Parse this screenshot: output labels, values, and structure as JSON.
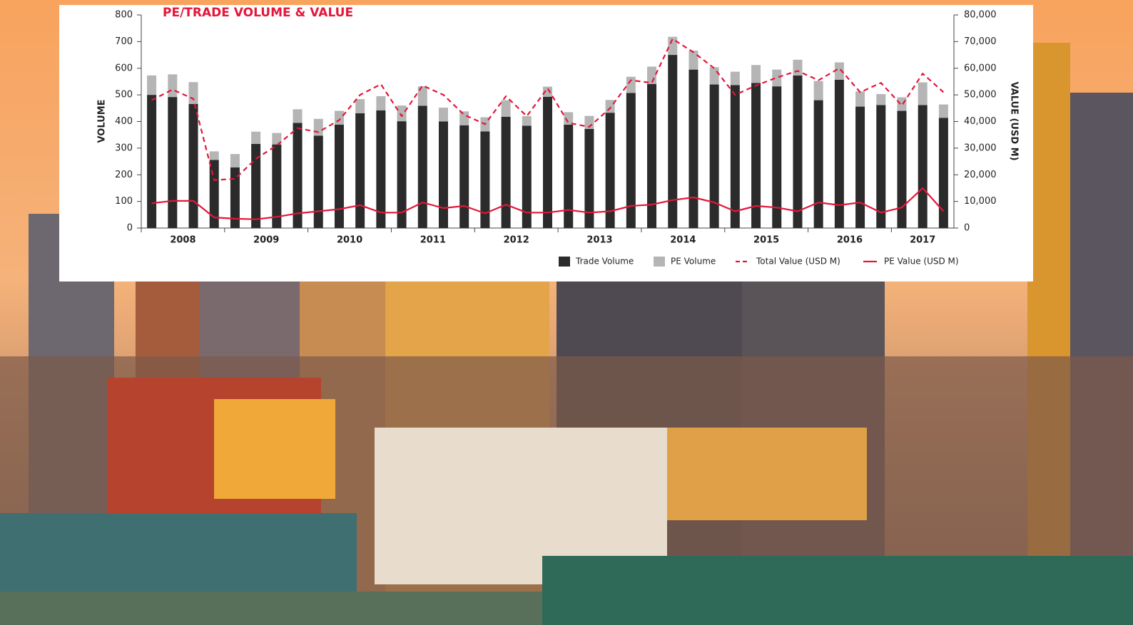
{
  "chart_data": {
    "type": "bar",
    "title": "PE/TRADE VOLUME & VALUE",
    "y_label": "VOLUME",
    "y2_label": "VALUE (USD M)",
    "categories": [
      "2008",
      null,
      null,
      null,
      "2009",
      null,
      null,
      null,
      "2010",
      null,
      null,
      null,
      "2011",
      null,
      null,
      null,
      "2012",
      null,
      null,
      null,
      "2013",
      null,
      null,
      null,
      "2014",
      null,
      null,
      null,
      "2015",
      null,
      null,
      null,
      "2016",
      null,
      null,
      null,
      "2017",
      null,
      null
    ],
    "stacked": true,
    "series": [
      {
        "name": "Trade Volume",
        "color": "#2b2b2b",
        "type": "bar",
        "axis": "y",
        "values": [
          500,
          492,
          466,
          256,
          228,
          316,
          314,
          395,
          347,
          388,
          431,
          442,
          401,
          459,
          400,
          386,
          363,
          418,
          384,
          493,
          388,
          372,
          433,
          507,
          541,
          650,
          595,
          539,
          537,
          545,
          532,
          573,
          480,
          557,
          456,
          462,
          440,
          462,
          414
        ]
      },
      {
        "name": "PE Volume",
        "color": "#b5b5b5",
        "type": "bar",
        "axis": "y",
        "values": [
          73,
          85,
          82,
          32,
          50,
          46,
          43,
          51,
          63,
          52,
          53,
          53,
          59,
          73,
          52,
          52,
          53,
          62,
          36,
          38,
          47,
          49,
          48,
          61,
          65,
          68,
          71,
          65,
          50,
          67,
          63,
          59,
          72,
          65,
          57,
          41,
          51,
          85,
          50
        ]
      },
      {
        "name": "Total Value (USD M)",
        "color": "#e4163a",
        "type": "line",
        "dashed": true,
        "axis": "y2",
        "values": [
          48000,
          52000,
          48500,
          18000,
          18500,
          26000,
          31000,
          37500,
          36000,
          40500,
          50000,
          54000,
          42000,
          53500,
          50000,
          42500,
          39000,
          49500,
          42000,
          52500,
          39500,
          38000,
          45000,
          55500,
          54500,
          71000,
          66000,
          60000,
          50000,
          53500,
          56500,
          59000,
          55500,
          60000,
          51000,
          54500,
          46000,
          58000,
          51000
        ]
      },
      {
        "name": "PE Value (USD M)",
        "color": "#e4163a",
        "type": "line",
        "dashed": false,
        "axis": "y2",
        "values": [
          9300,
          10200,
          10200,
          4000,
          3500,
          3300,
          4200,
          5500,
          6300,
          7100,
          8600,
          5800,
          5800,
          9600,
          7500,
          8300,
          5500,
          8800,
          5800,
          5800,
          6800,
          5800,
          6300,
          8300,
          8800,
          10500,
          11500,
          9600,
          6300,
          8300,
          7700,
          6300,
          9600,
          8600,
          9600,
          5800,
          7700,
          15000,
          6300
        ]
      }
    ],
    "ylim": [
      0,
      800
    ],
    "yticks": [
      0,
      100,
      200,
      300,
      400,
      500,
      600,
      700,
      800
    ],
    "y2lim": [
      0,
      80000
    ],
    "y2ticks": [
      0,
      {
        "value": 10000,
        "label": "10,000"
      },
      {
        "value": 20000,
        "label": "20,000"
      },
      {
        "value": 30000,
        "label": "30,000"
      },
      {
        "value": 40000,
        "label": "40,000"
      },
      {
        "value": 50000,
        "label": "50,000"
      },
      {
        "value": 60000,
        "label": "60,000"
      },
      {
        "value": 70000,
        "label": "70,000"
      },
      {
        "value": 80000,
        "label": "80,000"
      }
    ],
    "grid": false,
    "legend": "bottom-right"
  }
}
